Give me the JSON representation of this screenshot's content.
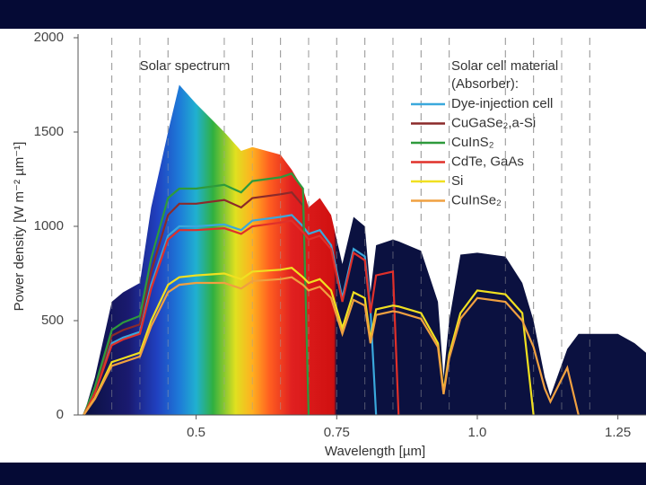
{
  "chart_data": {
    "type": "line",
    "ylabel": "Power density [W m⁻² µm⁻¹]",
    "xlabel": "Wavelength [µm]",
    "annotations": [
      "Solar spectrum"
    ],
    "legend_title": [
      "Solar cell material",
      "(Absorber):"
    ],
    "xlim": [
      0.29,
      1.3
    ],
    "ylim": [
      0,
      2000
    ],
    "xticks": [
      0.5,
      0.75,
      {
        "value": 1,
        "label": "1.0"
      },
      1.25
    ],
    "yticks": [
      0,
      500,
      1000,
      1500,
      2000
    ],
    "xgrid": [
      0.35,
      0.4,
      0.45,
      0.55,
      0.6,
      0.65,
      0.7,
      0.75,
      0.8,
      0.85,
      0.9,
      0.95,
      1.05,
      1.1,
      1.15,
      1.2
    ],
    "x": [
      0.3,
      0.32,
      0.35,
      0.37,
      0.4,
      0.42,
      0.45,
      0.47,
      0.5,
      0.55,
      0.58,
      0.6,
      0.65,
      0.67,
      0.69,
      0.7,
      0.72,
      0.74,
      0.76,
      0.78,
      0.8,
      0.81,
      0.82,
      0.85,
      0.86,
      0.9,
      0.93,
      0.94,
      0.95,
      0.97,
      1.0,
      1.05,
      1.08,
      1.1,
      1.12,
      1.13,
      1.16,
      1.18,
      1.2,
      1.25,
      1.28,
      1.3
    ],
    "spectrum": {
      "name": "Solar spectrum",
      "color": "#0b1140",
      "values": [
        0,
        200,
        600,
        650,
        700,
        1100,
        1500,
        1750,
        1650,
        1500,
        1400,
        1420,
        1380,
        1300,
        1200,
        1100,
        1150,
        1060,
        800,
        1050,
        1000,
        650,
        900,
        930,
        920,
        870,
        600,
        200,
        500,
        850,
        860,
        840,
        700,
        500,
        200,
        100,
        350,
        430,
        430,
        430,
        380,
        330
      ]
    },
    "series": [
      {
        "name": "Dye-injection cell",
        "color": "#3aa8dc",
        "values": [
          0,
          120,
          380,
          410,
          440,
          690,
          950,
          1000,
          1000,
          1010,
          980,
          1030,
          1050,
          1060,
          1000,
          960,
          980,
          900,
          620,
          880,
          840,
          560,
          0,
          null,
          null,
          null,
          null,
          null,
          null,
          null,
          null,
          null,
          null,
          null,
          null,
          null,
          null,
          null,
          null,
          null,
          null,
          null
        ]
      },
      {
        "name": "CuGaSe₂,a-Si",
        "color": "#8b2a2a",
        "values": [
          0,
          130,
          420,
          450,
          480,
          760,
          1060,
          1120,
          1120,
          1140,
          1100,
          1150,
          1170,
          1180,
          1110,
          0,
          null,
          null,
          null,
          null,
          null,
          null,
          null,
          null,
          null,
          null,
          null,
          null,
          null,
          null,
          null,
          null,
          null,
          null,
          null,
          null,
          null,
          null,
          null,
          null,
          null,
          null
        ]
      },
      {
        "name": "CuInS₂",
        "color": "#2e9a3c",
        "values": [
          0,
          150,
          450,
          490,
          525,
          830,
          1150,
          1200,
          1200,
          1220,
          1180,
          1240,
          1260,
          1280,
          1200,
          0,
          null,
          null,
          null,
          null,
          null,
          null,
          null,
          null,
          null,
          null,
          null,
          null,
          null,
          null,
          null,
          null,
          null,
          null,
          null,
          null,
          null,
          null,
          null,
          null,
          null,
          null
        ]
      },
      {
        "name": "CdTe, GaAs",
        "color": "#e0302a",
        "values": [
          0,
          115,
          370,
          400,
          430,
          670,
          930,
          980,
          980,
          990,
          960,
          1000,
          1020,
          1030,
          970,
          930,
          950,
          880,
          600,
          860,
          820,
          540,
          740,
          760,
          0,
          null,
          null,
          null,
          null,
          null,
          null,
          null,
          null,
          null,
          null,
          null,
          null,
          null,
          null,
          null,
          null,
          null
        ]
      },
      {
        "name": "Si",
        "color": "#f0e020",
        "values": [
          0,
          90,
          280,
          300,
          330,
          500,
          690,
          730,
          740,
          750,
          720,
          760,
          770,
          780,
          730,
          700,
          720,
          660,
          460,
          650,
          620,
          400,
          560,
          580,
          575,
          540,
          380,
          120,
          320,
          540,
          660,
          640,
          540,
          0,
          null,
          null,
          null,
          null,
          null,
          null,
          null,
          null
        ]
      },
      {
        "name": "CuInSe₂",
        "color": "#f0a040",
        "values": [
          0,
          85,
          260,
          280,
          310,
          470,
          650,
          690,
          700,
          700,
          670,
          710,
          720,
          730,
          690,
          660,
          680,
          620,
          430,
          610,
          580,
          380,
          530,
          550,
          545,
          510,
          360,
          110,
          300,
          510,
          620,
          600,
          500,
          360,
          140,
          70,
          250,
          0,
          null,
          null,
          null,
          null
        ]
      }
    ]
  }
}
